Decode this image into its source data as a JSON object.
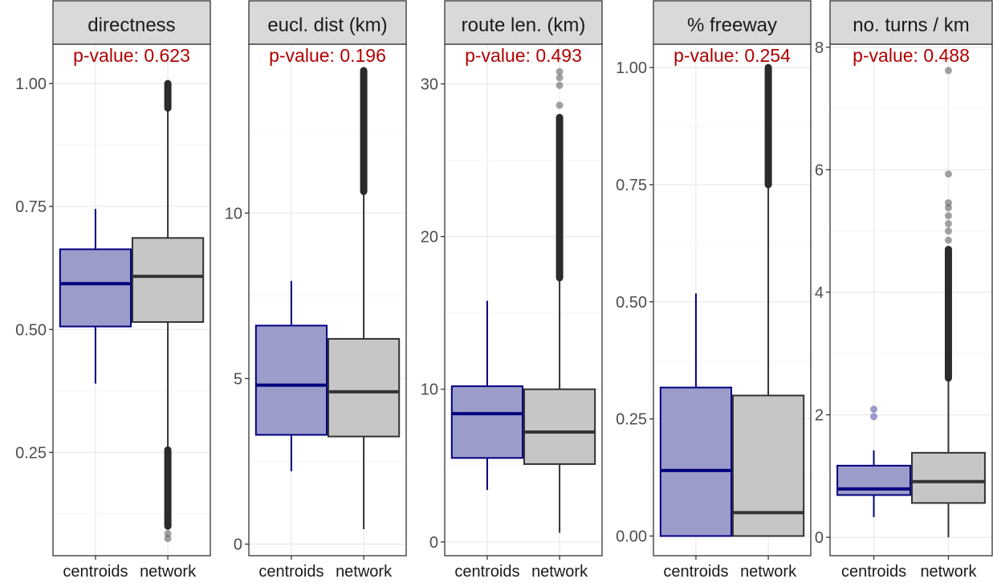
{
  "chart_data": [
    {
      "type": "boxplot",
      "title": "directness",
      "annotation": "p-value: 0.623",
      "categories": [
        "centroids",
        "network"
      ],
      "ylim": [
        0.04,
        1.08
      ],
      "yticks": [
        0.25,
        0.5,
        0.75,
        1.0
      ],
      "ytick_labels": [
        "0.25",
        "0.50",
        "0.75",
        "1.00"
      ],
      "boxes": [
        {
          "category": "centroids",
          "whisker_low": 0.39,
          "q1": 0.506,
          "median": 0.593,
          "q3": 0.663,
          "whisker_high": 0.745,
          "outliers": []
        },
        {
          "category": "network",
          "whisker_low": 0.258,
          "q1": 0.515,
          "median": 0.608,
          "q3": 0.686,
          "whisker_high": 0.948,
          "outlier_bands": [
            [
              0.95,
              1.0
            ],
            [
              0.1,
              0.255
            ]
          ],
          "outliers": [
            0.085,
            0.075
          ]
        }
      ]
    },
    {
      "type": "boxplot",
      "title": "eucl. dist (km)",
      "annotation": "p-value: 0.196",
      "categories": [
        "centroids",
        "network"
      ],
      "ylim": [
        -0.35,
        15.1
      ],
      "yticks": [
        0,
        5,
        10
      ],
      "ytick_labels": [
        "0",
        "5",
        "10"
      ],
      "boxes": [
        {
          "category": "centroids",
          "whisker_low": 2.2,
          "q1": 3.3,
          "median": 4.8,
          "q3": 6.6,
          "whisker_high": 7.95,
          "outliers": []
        },
        {
          "category": "network",
          "whisker_low": 0.45,
          "q1": 3.25,
          "median": 4.6,
          "q3": 6.2,
          "whisker_high": 10.6,
          "outlier_bands": [
            [
              10.65,
              14.3
            ]
          ],
          "outliers": []
        }
      ]
    },
    {
      "type": "boxplot",
      "title": "route len. (km)",
      "annotation": "p-value: 0.493",
      "categories": [
        "centroids",
        "network"
      ],
      "ylim": [
        -0.9,
        32.6
      ],
      "yticks": [
        0,
        10,
        20,
        30
      ],
      "ytick_labels": [
        "0",
        "10",
        "20",
        "30"
      ],
      "boxes": [
        {
          "category": "centroids",
          "whisker_low": 3.4,
          "q1": 5.5,
          "median": 8.4,
          "q3": 10.2,
          "whisker_high": 15.8,
          "outliers": []
        },
        {
          "category": "network",
          "whisker_low": 0.6,
          "q1": 5.1,
          "median": 7.2,
          "q3": 10.0,
          "whisker_high": 17.2,
          "outlier_bands": [
            [
              17.3,
              27.8
            ]
          ],
          "outliers": [
            28.6,
            29.9,
            30.4,
            30.8
          ]
        }
      ]
    },
    {
      "type": "boxplot",
      "title": "% freeway",
      "annotation": "p-value: 0.254",
      "categories": [
        "centroids",
        "network"
      ],
      "ylim": [
        -0.042,
        1.05
      ],
      "yticks": [
        0,
        0.25,
        0.5,
        0.75,
        1.0
      ],
      "ytick_labels": [
        "0.00",
        "0.25",
        "0.50",
        "0.75",
        "1.00"
      ],
      "boxes": [
        {
          "category": "centroids",
          "whisker_low": 0.0,
          "q1": 0.0,
          "median": 0.14,
          "q3": 0.317,
          "whisker_high": 0.518,
          "outliers": []
        },
        {
          "category": "network",
          "whisker_low": 0.0,
          "q1": 0.0,
          "median": 0.05,
          "q3": 0.3,
          "whisker_high": 0.745,
          "outlier_bands": [
            [
              0.75,
              1.0
            ]
          ],
          "outliers": []
        }
      ]
    },
    {
      "type": "boxplot",
      "title": "no. turns / km",
      "annotation": "p-value: 0.488",
      "categories": [
        "centroids",
        "network"
      ],
      "ylim": [
        -0.3,
        8.05
      ],
      "yticks": [
        0,
        2,
        4,
        6,
        8
      ],
      "ytick_labels": [
        "0",
        "2",
        "4",
        "6",
        "8"
      ],
      "boxes": [
        {
          "category": "centroids",
          "whisker_low": 0.33,
          "q1": 0.69,
          "median": 0.79,
          "q3": 1.17,
          "whisker_high": 1.42,
          "outliers": [
            1.97,
            2.09
          ]
        },
        {
          "category": "network",
          "whisker_low": 0.0,
          "q1": 0.56,
          "median": 0.91,
          "q3": 1.38,
          "whisker_high": 2.55,
          "outlier_bands": [
            [
              2.6,
              4.7
            ]
          ],
          "outliers": [
            4.85,
            5.0,
            5.12,
            5.25,
            5.38,
            5.46,
            5.93,
            7.62
          ]
        }
      ]
    }
  ],
  "colors": {
    "centroids_fill": "#9b9cca",
    "centroids_stroke": "#000080",
    "network_fill": "#c6c6c6",
    "network_stroke": "#333333",
    "strip_fill": "#d9d9d9",
    "annotation": "#b00000",
    "grid_major": "#ebebeb",
    "grid_minor": "#f5f5f5",
    "axis_text": "#4d4d4d"
  }
}
